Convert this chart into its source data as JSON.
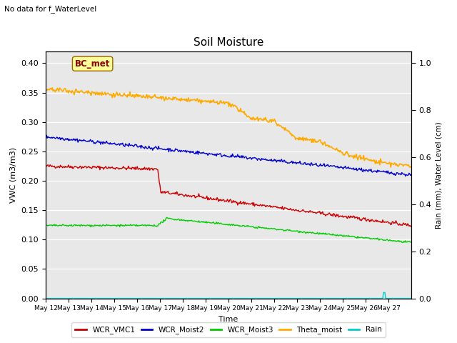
{
  "title": "Soil Moisture",
  "subtitle": "No data for f_WaterLevel",
  "xlabel": "Time",
  "ylabel_left": "VWC (m3/m3)",
  "ylabel_right": "Rain (mm), Water Level (cm)",
  "annotation": "BC_met",
  "ylim_left": [
    0.0,
    0.42
  ],
  "ylim_right": [
    0.0,
    1.05
  ],
  "x_tick_labels": [
    "May 12",
    "May 13",
    "May 14",
    "May 15",
    "May 16",
    "May 17",
    "May 18",
    "May 19",
    "May 20",
    "May 21",
    "May 22",
    "May 23",
    "May 24",
    "May 25",
    "May 26",
    "May 27"
  ],
  "yticks_left": [
    0.0,
    0.05,
    0.1,
    0.15,
    0.2,
    0.25,
    0.3,
    0.35,
    0.4
  ],
  "yticks_right": [
    0.0,
    0.2,
    0.4,
    0.6,
    0.8,
    1.0
  ],
  "colors": {
    "WCR_VMC1": "#cc0000",
    "WCR_Moist2": "#0000cc",
    "WCR_Moist3": "#00cc00",
    "Theta_moist": "#ffaa00",
    "Rain": "#00cccc",
    "background": "#e8e8e8"
  },
  "legend_labels": [
    "WCR_VMC1",
    "WCR_Moist2",
    "WCR_Moist3",
    "Theta_moist",
    "Rain"
  ]
}
